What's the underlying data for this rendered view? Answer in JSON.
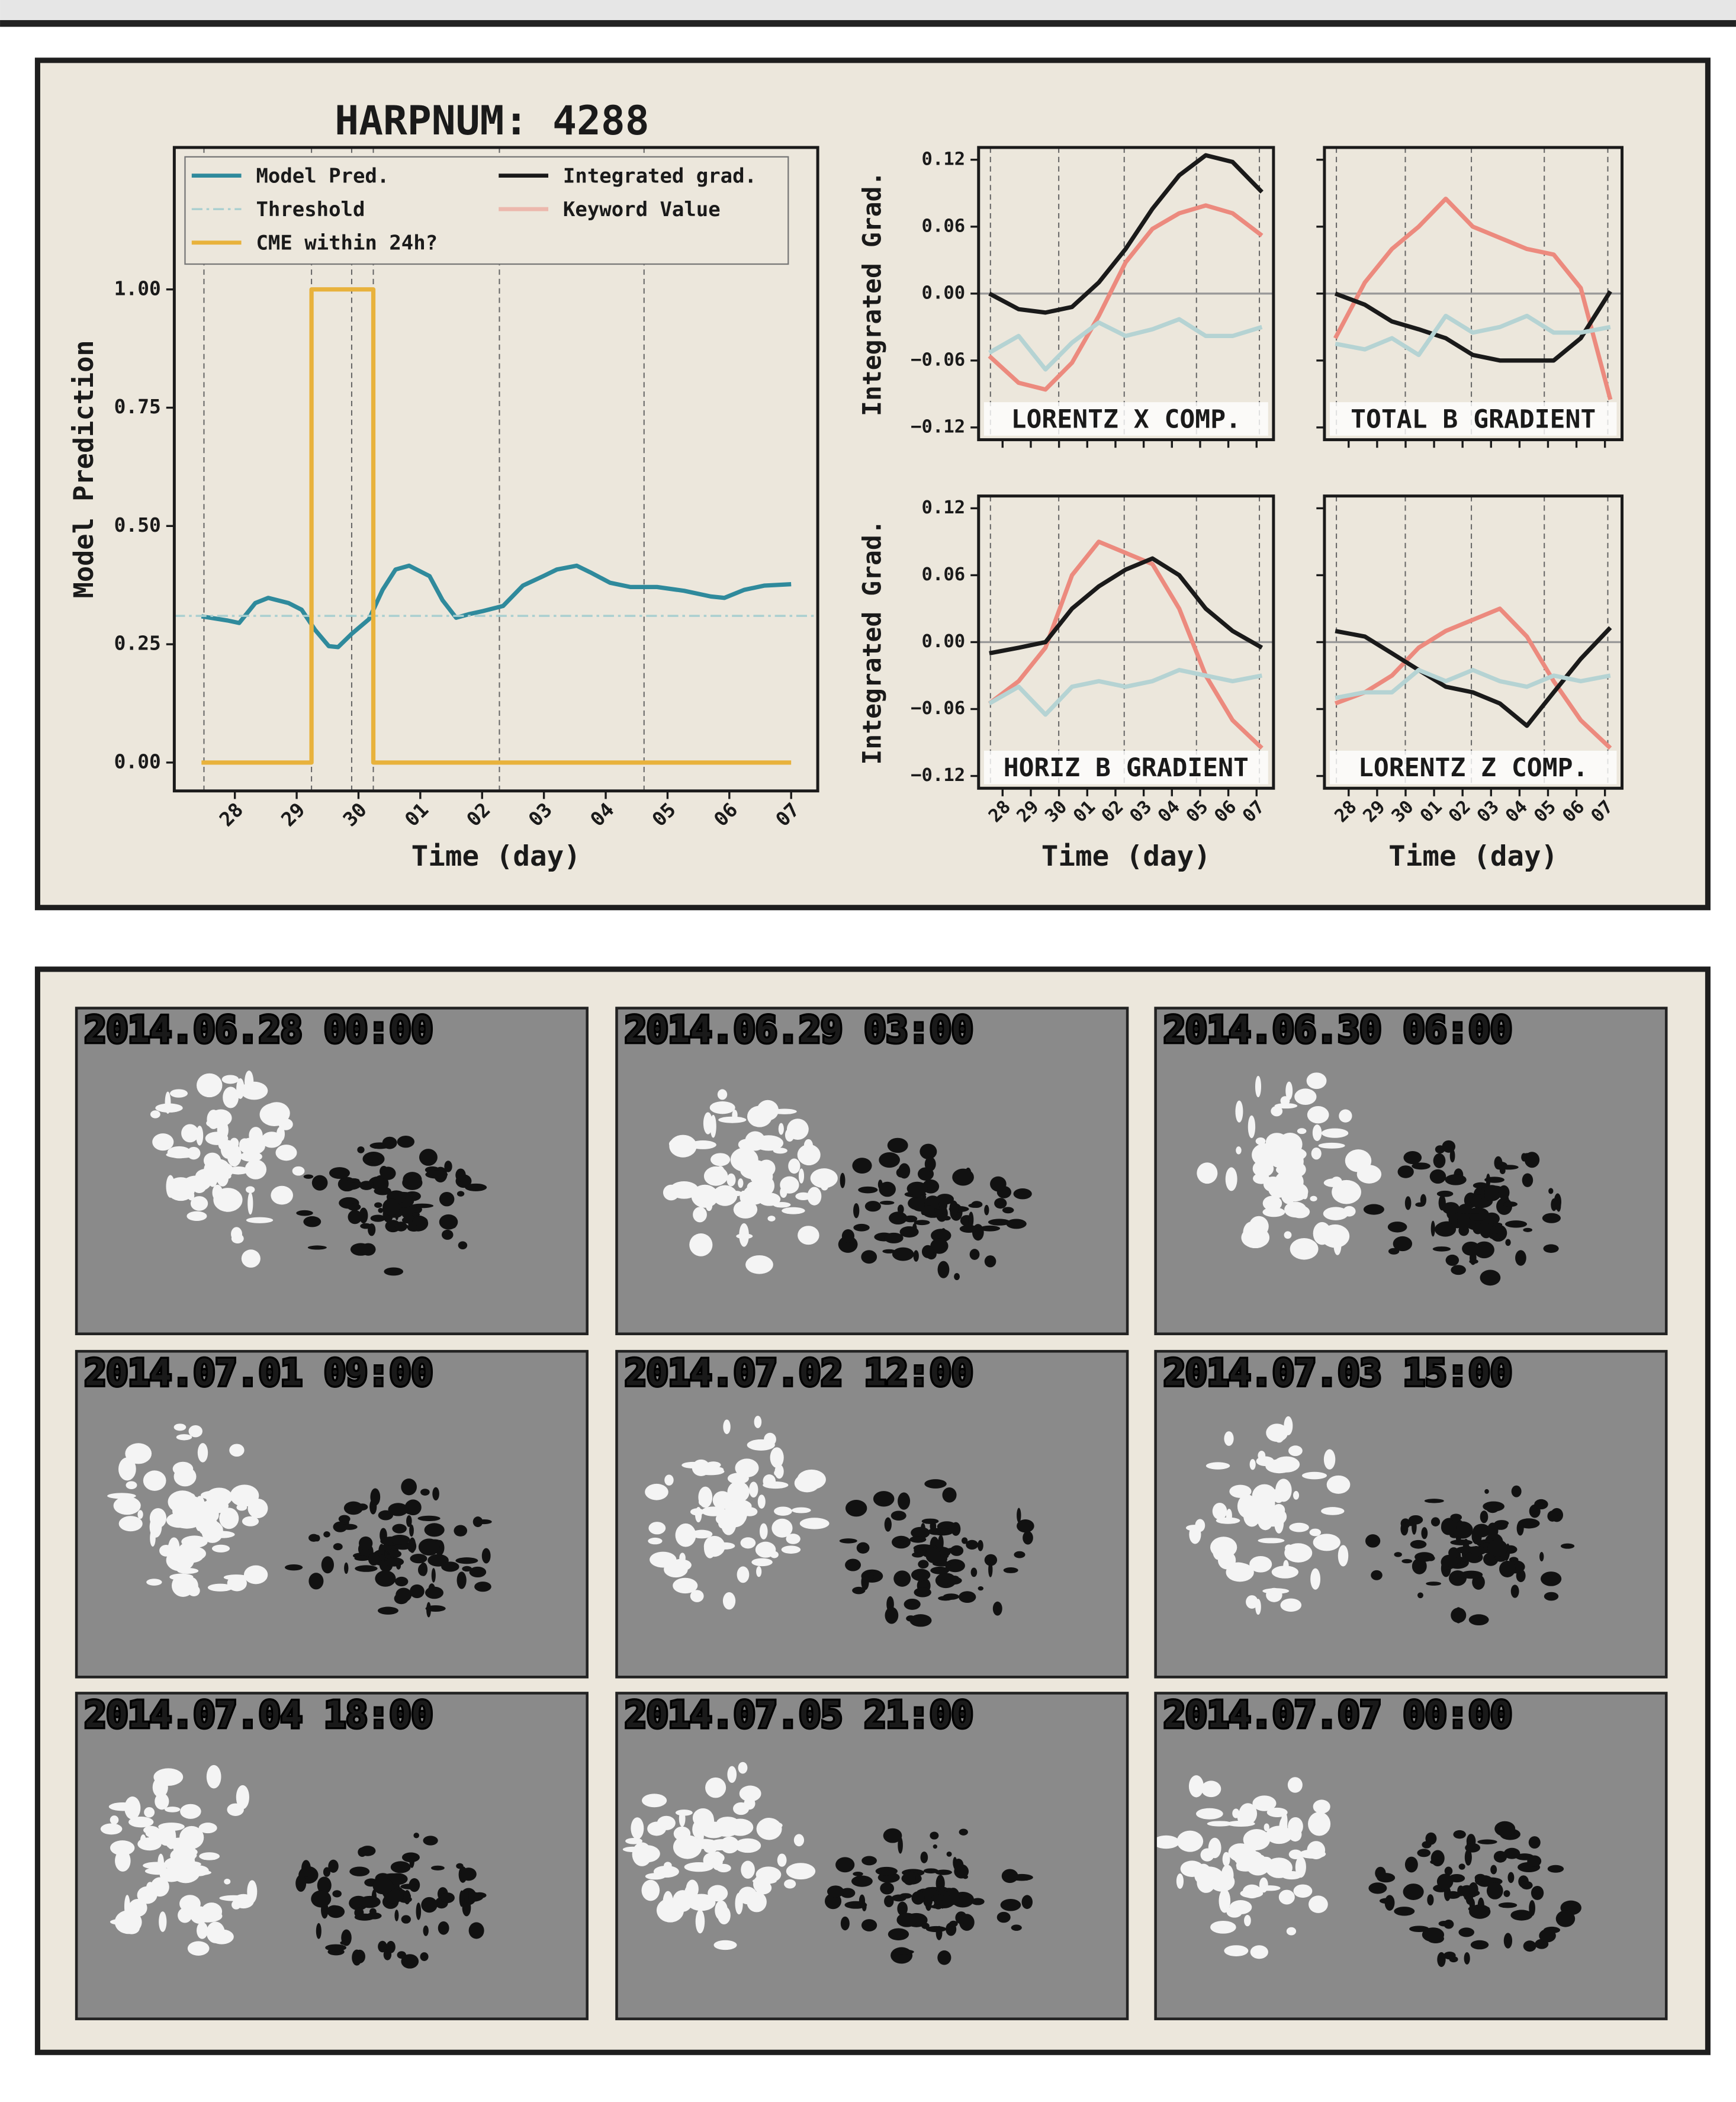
{
  "chart_data": [
    {
      "type": "line",
      "title": "HARPNUM: 4288",
      "xlabel": "Time (day)",
      "ylabel": "Model Prediction",
      "xlim": [
        -0.98,
        9.43
      ],
      "ylim": [
        -0.06,
        1.3
      ],
      "xticks": [
        {
          "value": 0,
          "label": "28"
        },
        {
          "value": 1,
          "label": "29"
        },
        {
          "value": 2,
          "label": "30"
        },
        {
          "value": 3,
          "label": "01"
        },
        {
          "value": 4,
          "label": "02"
        },
        {
          "value": 5,
          "label": "03"
        },
        {
          "value": 6,
          "label": "04"
        },
        {
          "value": 7,
          "label": "05"
        },
        {
          "value": 8,
          "label": "06"
        },
        {
          "value": 9,
          "label": "07"
        }
      ],
      "yticks": [
        {
          "value": 0,
          "label": "0.00"
        },
        {
          "value": 0.25,
          "label": "0.25"
        },
        {
          "value": 0.5,
          "label": "0.50"
        },
        {
          "value": 0.75,
          "label": "0.75"
        },
        {
          "value": 1,
          "label": "1.00"
        }
      ],
      "vlines": [
        -0.5,
        1.24,
        1.89,
        2.24,
        4.28,
        6.62
      ],
      "legend": "upper center",
      "series": [
        {
          "name": "Model Pred.",
          "color": "#2f8a9c",
          "x": [
            -0.54,
            -0.11,
            0.07,
            0.33,
            0.54,
            0.87,
            1.08,
            1.3,
            1.52,
            1.67,
            1.89,
            2.17,
            2.39,
            2.6,
            2.82,
            3.15,
            3.36,
            3.58,
            3.8,
            4.01,
            4.34,
            4.66,
            4.99,
            5.21,
            5.53,
            5.75,
            6.07,
            6.4,
            6.83,
            7.27,
            7.7,
            7.92,
            8.24,
            8.57,
            9.0
          ],
          "values": [
            0.309,
            0.3,
            0.295,
            0.337,
            0.348,
            0.337,
            0.323,
            0.28,
            0.246,
            0.244,
            0.272,
            0.303,
            0.365,
            0.408,
            0.416,
            0.394,
            0.343,
            0.306,
            0.314,
            0.32,
            0.331,
            0.374,
            0.394,
            0.408,
            0.416,
            0.402,
            0.38,
            0.371,
            0.371,
            0.363,
            0.351,
            0.348,
            0.365,
            0.374,
            0.377
          ]
        },
        {
          "name": "Threshold",
          "color": "#a9cfd0",
          "linestyle": "dashdot",
          "x": [
            -0.98,
            9.43
          ],
          "values": [
            0.31,
            0.31
          ]
        },
        {
          "name": "CME within 24h?",
          "color": "#e8b23c",
          "x": [
            -0.54,
            1.24,
            1.24,
            2.24,
            2.24,
            9.0
          ],
          "values": [
            0,
            0,
            1,
            1,
            0,
            0
          ]
        }
      ]
    },
    {
      "type": "line",
      "annotation": "LORENTZ X COMP.",
      "ylabel": "Integrated Grad.",
      "show_xtick_labels": false,
      "xlim": [
        -0.85,
        9.6
      ],
      "ylim": [
        -0.131,
        0.131
      ],
      "hline": 0,
      "vlines": [
        -0.43,
        1.99,
        4.31,
        6.87,
        9.1
      ],
      "xticks": [
        {
          "value": 0,
          "label": "28"
        },
        {
          "value": 1,
          "label": "29"
        },
        {
          "value": 2,
          "label": "30"
        },
        {
          "value": 3,
          "label": "01"
        },
        {
          "value": 4,
          "label": "02"
        },
        {
          "value": 5,
          "label": "03"
        },
        {
          "value": 6,
          "label": "04"
        },
        {
          "value": 7,
          "label": "05"
        },
        {
          "value": 8,
          "label": "06"
        },
        {
          "value": 9,
          "label": "07"
        }
      ],
      "yticks": [
        {
          "value": -0.12,
          "label": "−0.12"
        },
        {
          "value": -0.06,
          "label": "−0.06"
        },
        {
          "value": 0,
          "label": "0.00"
        },
        {
          "value": 0.06,
          "label": "0.06"
        },
        {
          "value": 0.12,
          "label": "0.12"
        }
      ],
      "x": [
        -0.47,
        0.57,
        1.52,
        2.46,
        3.41,
        4.36,
        5.31,
        6.26,
        7.2,
        8.15,
        9.19
      ],
      "series": [
        {
          "name": "Keyword Value",
          "color": "#ec8a7e",
          "values": [
            -0.056,
            -0.08,
            -0.086,
            -0.062,
            -0.02,
            0.028,
            0.058,
            0.072,
            0.079,
            0.072,
            0.052
          ]
        },
        {
          "name": "Integrated grad.",
          "color": "#1a1a1a",
          "values": [
            0.0,
            -0.014,
            -0.017,
            -0.012,
            0.01,
            0.04,
            0.076,
            0.106,
            0.124,
            0.118,
            0.091
          ]
        },
        {
          "color": "#b5d3d3",
          "values": [
            -0.053,
            -0.038,
            -0.068,
            -0.044,
            -0.026,
            -0.038,
            -0.032,
            -0.023,
            -0.038,
            -0.038,
            -0.03
          ]
        }
      ]
    },
    {
      "type": "line",
      "annotation": "TOTAL B GRADIENT",
      "show_xtick_labels": false,
      "show_ytick_labels": false,
      "xlim": [
        -0.85,
        9.6
      ],
      "ylim": [
        -0.131,
        0.131
      ],
      "hline": 0,
      "vlines": [
        -0.43,
        1.99,
        4.31,
        6.87,
        9.1
      ],
      "xticks": [
        {
          "value": 0,
          "label": "28"
        },
        {
          "value": 1,
          "label": "29"
        },
        {
          "value": 2,
          "label": "30"
        },
        {
          "value": 3,
          "label": "01"
        },
        {
          "value": 4,
          "label": "02"
        },
        {
          "value": 5,
          "label": "03"
        },
        {
          "value": 6,
          "label": "04"
        },
        {
          "value": 7,
          "label": "05"
        },
        {
          "value": 8,
          "label": "06"
        },
        {
          "value": 9,
          "label": "07"
        }
      ],
      "yticks": [
        {
          "value": -0.12,
          "label": "−0.12"
        },
        {
          "value": -0.06,
          "label": "−0.06"
        },
        {
          "value": 0,
          "label": "0.00"
        },
        {
          "value": 0.06,
          "label": "0.06"
        },
        {
          "value": 0.12,
          "label": "0.12"
        }
      ],
      "x": [
        -0.47,
        0.57,
        1.52,
        2.46,
        3.41,
        4.36,
        5.31,
        6.26,
        7.2,
        8.15,
        9.19
      ],
      "series": [
        {
          "name": "Keyword Value",
          "color": "#ec8a7e",
          "values": [
            -0.04,
            0.01,
            0.04,
            0.06,
            0.085,
            0.06,
            0.05,
            0.04,
            0.035,
            0.005,
            -0.095
          ]
        },
        {
          "name": "Integrated grad.",
          "color": "#1a1a1a",
          "values": [
            0.0,
            -0.01,
            -0.025,
            -0.032,
            -0.04,
            -0.055,
            -0.06,
            -0.06,
            -0.06,
            -0.04,
            0.002
          ]
        },
        {
          "color": "#b5d3d3",
          "values": [
            -0.045,
            -0.05,
            -0.04,
            -0.055,
            -0.02,
            -0.035,
            -0.03,
            -0.02,
            -0.035,
            -0.035,
            -0.03
          ]
        }
      ]
    },
    {
      "type": "line",
      "annotation": "HORIZ B GRADIENT",
      "ylabel": "Integrated Grad.",
      "xlabel": "Time (day)",
      "xlim": [
        -0.85,
        9.6
      ],
      "ylim": [
        -0.131,
        0.131
      ],
      "hline": 0,
      "vlines": [
        -0.43,
        1.99,
        4.31,
        6.87,
        9.1
      ],
      "xticks": [
        {
          "value": 0,
          "label": "28"
        },
        {
          "value": 1,
          "label": "29"
        },
        {
          "value": 2,
          "label": "30"
        },
        {
          "value": 3,
          "label": "01"
        },
        {
          "value": 4,
          "label": "02"
        },
        {
          "value": 5,
          "label": "03"
        },
        {
          "value": 6,
          "label": "04"
        },
        {
          "value": 7,
          "label": "05"
        },
        {
          "value": 8,
          "label": "06"
        },
        {
          "value": 9,
          "label": "07"
        }
      ],
      "yticks": [
        {
          "value": -0.12,
          "label": "−0.12"
        },
        {
          "value": -0.06,
          "label": "−0.06"
        },
        {
          "value": 0,
          "label": "0.00"
        },
        {
          "value": 0.06,
          "label": "0.06"
        },
        {
          "value": 0.12,
          "label": "0.12"
        }
      ],
      "x": [
        -0.47,
        0.57,
        1.52,
        2.46,
        3.41,
        4.36,
        5.31,
        6.26,
        7.2,
        8.15,
        9.19
      ],
      "series": [
        {
          "name": "Keyword Value",
          "color": "#ec8a7e",
          "values": [
            -0.055,
            -0.035,
            -0.005,
            0.06,
            0.09,
            0.08,
            0.07,
            0.03,
            -0.03,
            -0.07,
            -0.095
          ]
        },
        {
          "name": "Integrated grad.",
          "color": "#1a1a1a",
          "values": [
            -0.01,
            -0.005,
            0.0,
            0.03,
            0.05,
            0.065,
            0.075,
            0.06,
            0.03,
            0.01,
            -0.005
          ]
        },
        {
          "color": "#b5d3d3",
          "values": [
            -0.055,
            -0.04,
            -0.065,
            -0.04,
            -0.035,
            -0.04,
            -0.035,
            -0.025,
            -0.03,
            -0.035,
            -0.03
          ]
        }
      ]
    },
    {
      "type": "line",
      "annotation": "LORENTZ Z COMP.",
      "xlabel": "Time (day)",
      "show_ytick_labels": false,
      "xlim": [
        -0.85,
        9.6
      ],
      "ylim": [
        -0.131,
        0.131
      ],
      "hline": 0,
      "vlines": [
        -0.43,
        1.99,
        4.31,
        6.87,
        9.1
      ],
      "xticks": [
        {
          "value": 0,
          "label": "28"
        },
        {
          "value": 1,
          "label": "29"
        },
        {
          "value": 2,
          "label": "30"
        },
        {
          "value": 3,
          "label": "01"
        },
        {
          "value": 4,
          "label": "02"
        },
        {
          "value": 5,
          "label": "03"
        },
        {
          "value": 6,
          "label": "04"
        },
        {
          "value": 7,
          "label": "05"
        },
        {
          "value": 8,
          "label": "06"
        },
        {
          "value": 9,
          "label": "07"
        }
      ],
      "yticks": [
        {
          "value": -0.12,
          "label": "−0.12"
        },
        {
          "value": -0.06,
          "label": "−0.06"
        },
        {
          "value": 0,
          "label": "0.00"
        },
        {
          "value": 0.06,
          "label": "0.06"
        },
        {
          "value": 0.12,
          "label": "0.12"
        }
      ],
      "x": [
        -0.47,
        0.57,
        1.52,
        2.46,
        3.41,
        4.36,
        5.31,
        6.26,
        7.2,
        8.15,
        9.19
      ],
      "series": [
        {
          "name": "Keyword Value",
          "color": "#ec8a7e",
          "values": [
            -0.055,
            -0.045,
            -0.03,
            -0.005,
            0.01,
            0.02,
            0.03,
            0.005,
            -0.035,
            -0.07,
            -0.095
          ]
        },
        {
          "name": "Integrated grad.",
          "color": "#1a1a1a",
          "values": [
            0.01,
            0.005,
            -0.01,
            -0.025,
            -0.04,
            -0.045,
            -0.055,
            -0.075,
            -0.045,
            -0.015,
            0.013
          ]
        },
        {
          "color": "#b5d3d3",
          "values": [
            -0.05,
            -0.045,
            -0.045,
            -0.025,
            -0.035,
            -0.025,
            -0.035,
            -0.04,
            -0.03,
            -0.035,
            -0.03
          ]
        }
      ]
    }
  ],
  "snapshots": [
    "2014.06.28 00:00",
    "2014.06.29 03:00",
    "2014.06.30 06:00",
    "2014.07.01 09:00",
    "2014.07.02 12:00",
    "2014.07.03 15:00",
    "2014.07.04 18:00",
    "2014.07.05 21:00",
    "2014.07.07 00:00"
  ]
}
